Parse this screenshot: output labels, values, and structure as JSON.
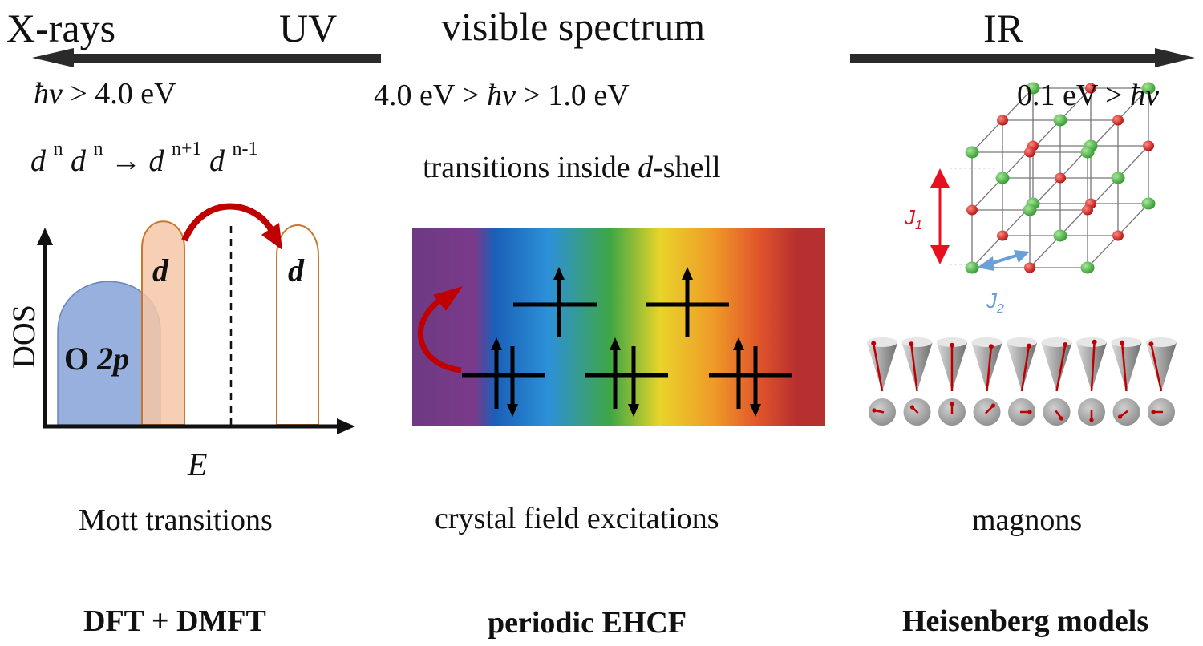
{
  "header": {
    "xrays": "X-rays",
    "uv": "UV",
    "visible": "visible spectrum",
    "ir": "IR"
  },
  "energy": {
    "uv_hbar": "ħν",
    "uv_rest": " > 4.0 eV",
    "vis_left": "4.0 eV > ",
    "vis_hbar": "ħν",
    "vis_right": " > 1.0 eV",
    "ir_left": "0.1 eV > ",
    "ir_hbar": "ħν"
  },
  "mott_formula": {
    "d1": "d",
    "n1": "n",
    "d2": "d",
    "n2": "n",
    "arrow": "→",
    "d3": "d",
    "n3": "n+1",
    "d4": "d",
    "n4": "n-1"
  },
  "dshell": {
    "pre": "transitions inside ",
    "d": "d",
    "post": "-shell"
  },
  "dos_plot": {
    "ylabel": "DOS",
    "xlabel": "E",
    "o2p_o": "O ",
    "o2p_2p": "2p",
    "d_left": "d",
    "d_right": "d"
  },
  "magnon_labels": {
    "j1_j": "J",
    "j1_sub": "1",
    "j2_j": "J",
    "j2_sub": "2"
  },
  "captions": {
    "mott": "Mott transitions",
    "crystal": "crystal field excitations",
    "magnons": "magnons"
  },
  "methods": {
    "dmft": "DFT + DMFT",
    "ehcf": "periodic EHCF",
    "heisenberg": "Heisenberg models"
  },
  "colors": {
    "o2p_fill": "#8ea9db",
    "d_fill": "#f4c7a7",
    "d_stroke": "#c77830",
    "red_arrow": "#c00000",
    "j1_color": "#e8101e",
    "j2_color": "#6a9fd8",
    "atom_green": "#52b84a",
    "atom_red": "#dd2020",
    "spectrum": [
      "#6e3a82",
      "#7a3a8a",
      "#1a5fb8",
      "#2d91d8",
      "#3fa644",
      "#e8d42a",
      "#ef9a28",
      "#e0542a",
      "#b73030"
    ]
  },
  "icons": [
    "left-arrow",
    "right-arrow",
    "curved-arrow",
    "spin-up-arrow",
    "spin-down-arrow",
    "cube-lattice",
    "spin-cone"
  ]
}
